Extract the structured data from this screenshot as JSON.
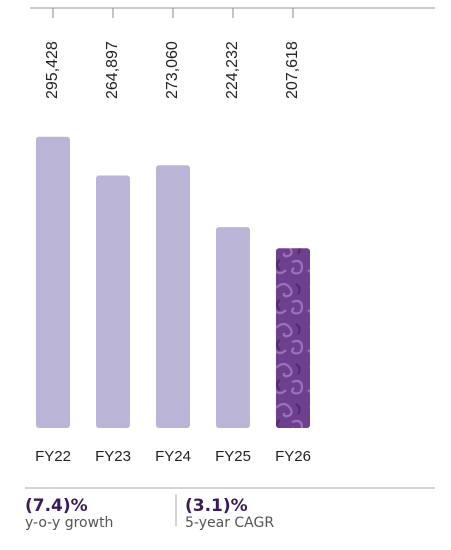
{
  "chart_data": {
    "type": "bar",
    "categories": [
      "FY22",
      "FY23",
      "FY24",
      "FY25",
      "FY26"
    ],
    "values": [
      295428,
      264897,
      273060,
      224232,
      207618
    ],
    "value_labels": [
      "295,428",
      "264,897",
      "273,060",
      "224,232",
      "207,618"
    ],
    "colors": [
      "#bab5d6",
      "#bab5d6",
      "#bab5d6",
      "#bab5d6",
      "#6e3f8f"
    ],
    "ylim": [
      66000,
      300000
    ]
  },
  "stats": [
    {
      "value": "(7.4)%",
      "label": "y-o-y growth"
    },
    {
      "value": "(3.1)%",
      "label": "5-year CAGR"
    }
  ]
}
